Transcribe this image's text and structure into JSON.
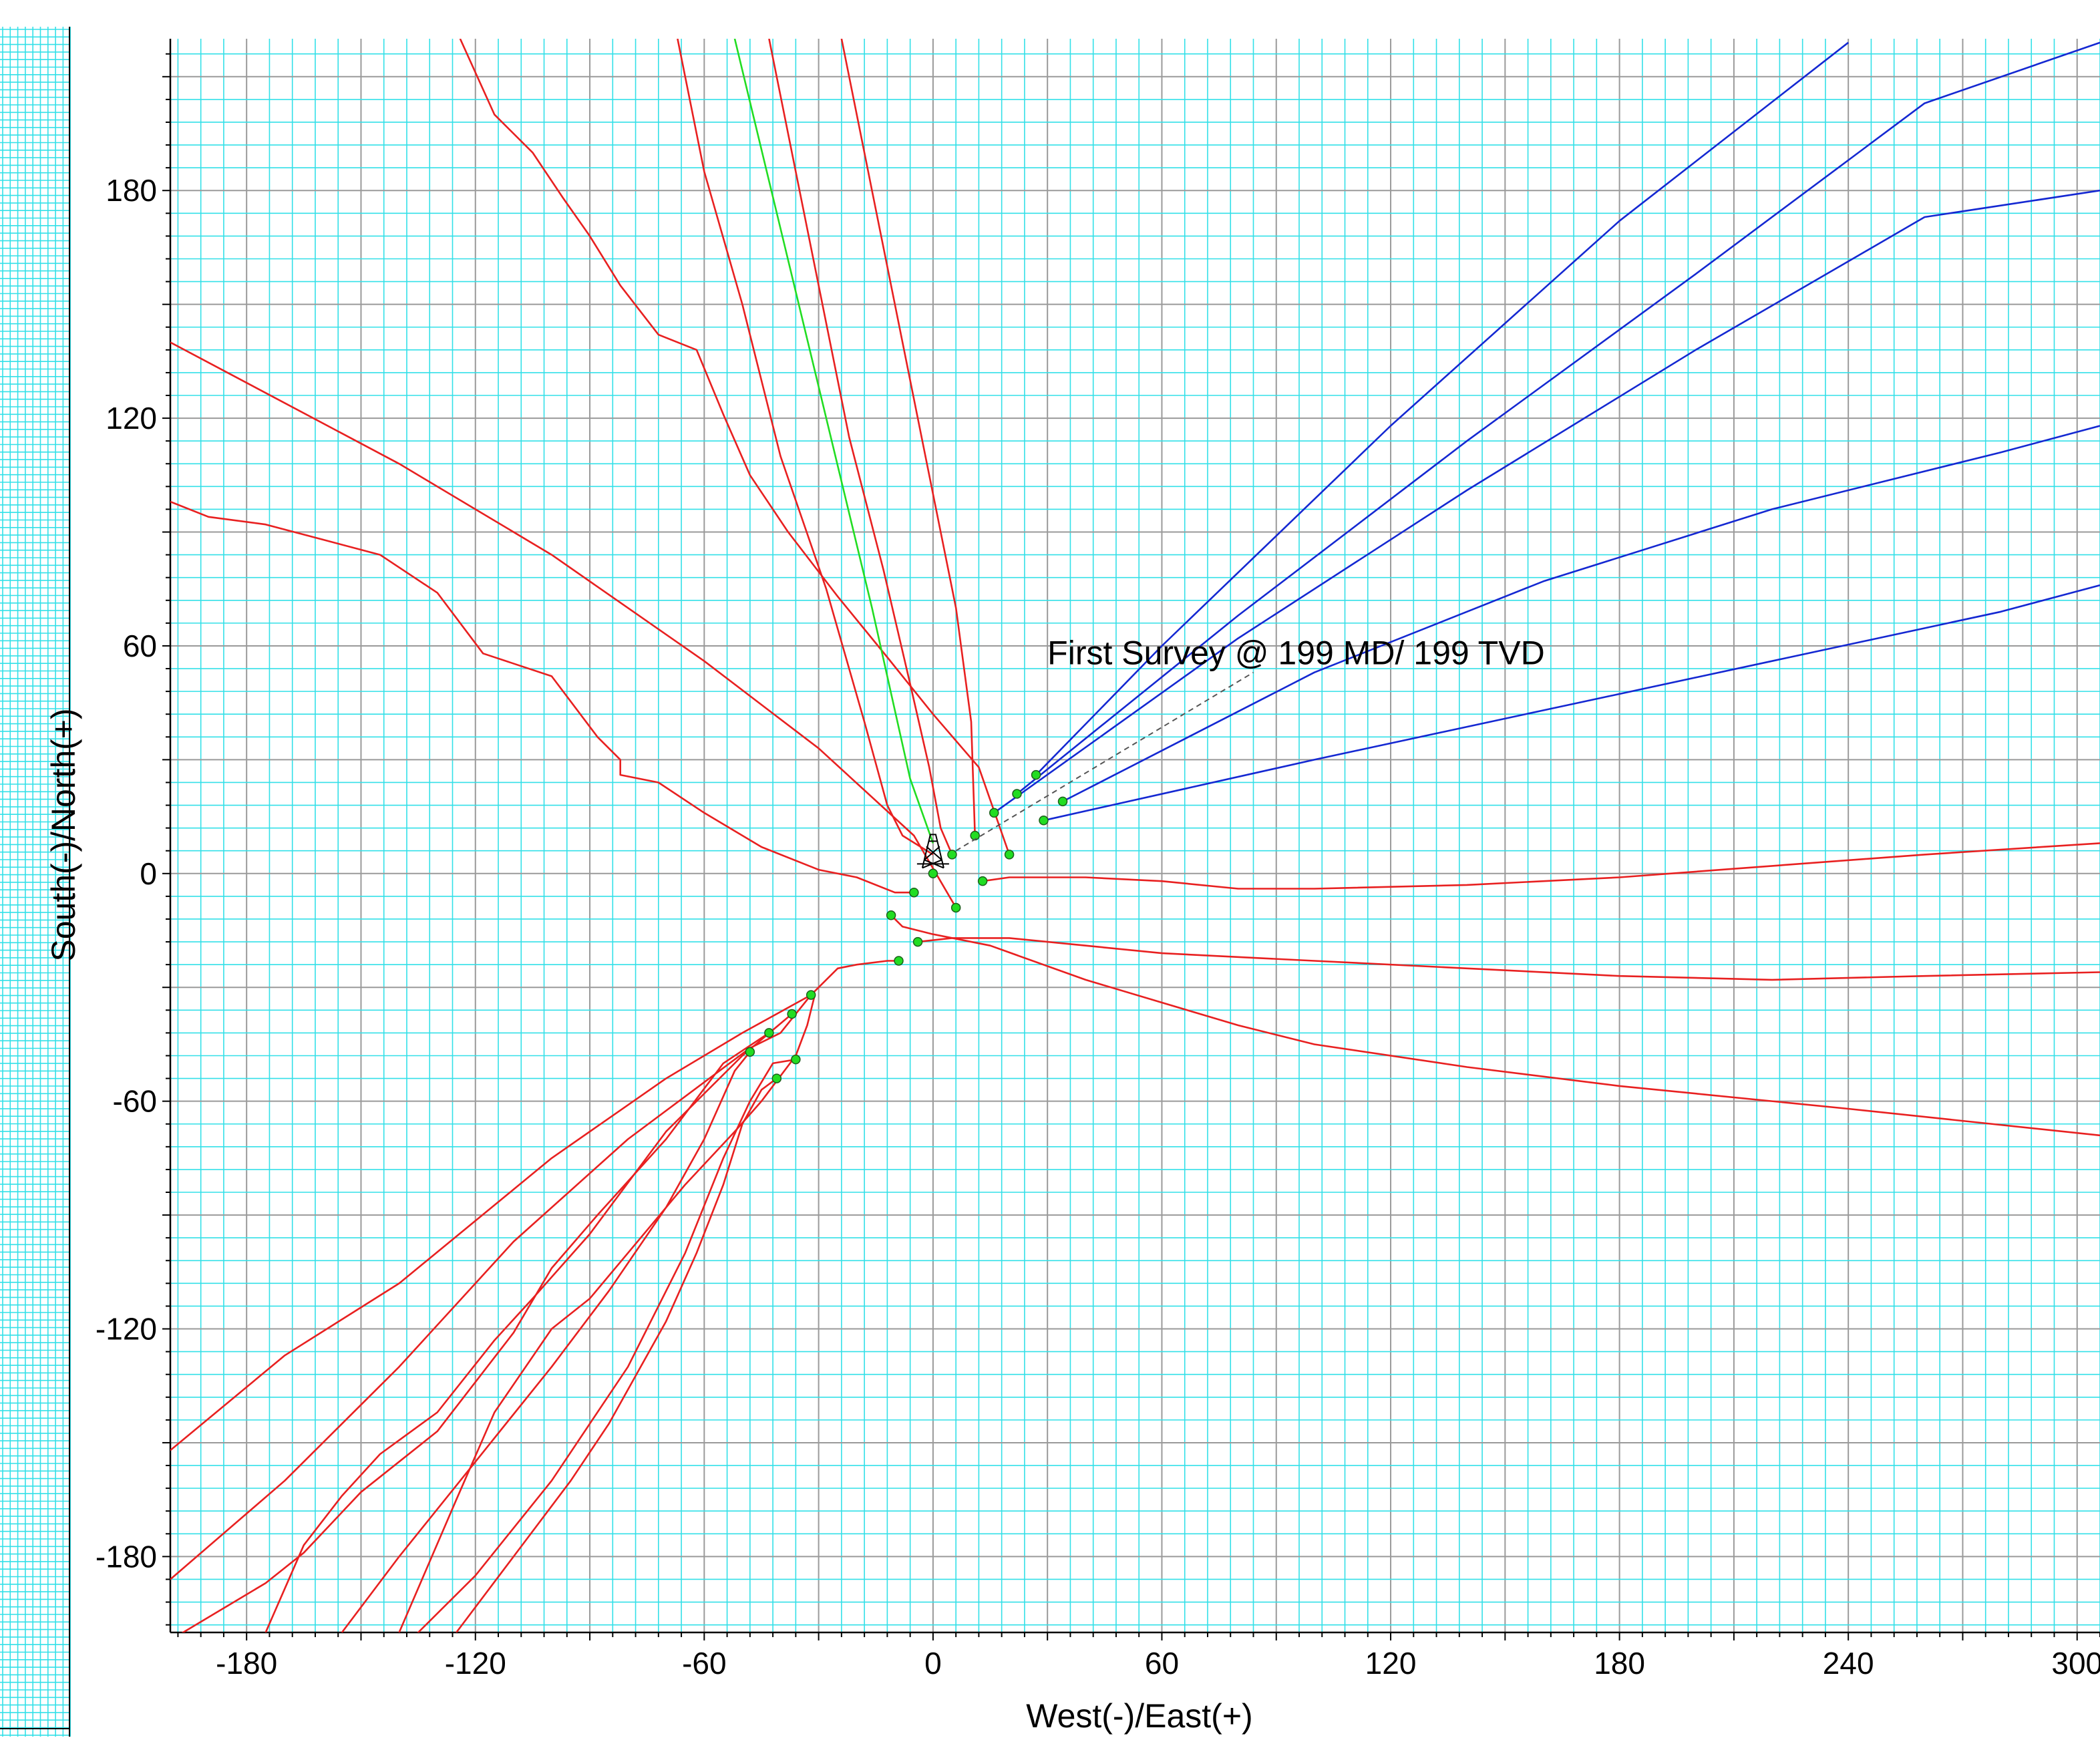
{
  "chart_data": {
    "type": "line",
    "title": "",
    "xlabel": "West(-)/East(+)",
    "ylabel": "South(-)/North(+)",
    "xlim": [
      -200,
      306
    ],
    "ylim": [
      -200,
      220
    ],
    "xticks": [
      {
        "value": -180,
        "label": "-180"
      },
      {
        "value": -120,
        "label": "-120"
      },
      {
        "value": -60,
        "label": "-60"
      },
      {
        "value": 0,
        "label": "0"
      },
      {
        "value": 60,
        "label": "60"
      },
      {
        "value": 120,
        "label": "120"
      },
      {
        "value": 180,
        "label": "180"
      },
      {
        "value": 240,
        "label": "240"
      },
      {
        "value": 300,
        "label": "300"
      }
    ],
    "yticks": [
      {
        "value": 180,
        "label": "180"
      },
      {
        "value": 120,
        "label": "120"
      },
      {
        "value": 60,
        "label": "60"
      },
      {
        "value": 0,
        "label": "0"
      },
      {
        "value": -60,
        "label": "-60"
      },
      {
        "value": -120,
        "label": "-120"
      },
      {
        "value": -180,
        "label": "-180"
      }
    ],
    "grid": {
      "minor_step": 6,
      "major_step": 30,
      "minor_color": "#33e0e8",
      "major_color": "#9a9a9a",
      "background": "#ffffff"
    },
    "annotation": {
      "text": "First Survey @ 199 MD/ 199 TVD",
      "x": 30,
      "y": 58,
      "leader_from": [
        6,
        6
      ],
      "leader_to": [
        84,
        53
      ]
    },
    "colors": {
      "red": "#e82020",
      "blue": "#1428d2",
      "green": "#22dd22",
      "marker": "#22dd22",
      "wellhead": "#000000"
    },
    "wellhead": {
      "x": 0,
      "y": 5
    },
    "series": [
      {
        "color": "red",
        "points": [
          [
            -124,
            220
          ],
          [
            -115,
            200
          ],
          [
            -105,
            190
          ],
          [
            -97,
            178
          ],
          [
            -90,
            168
          ],
          [
            -82,
            155
          ],
          [
            -72,
            142
          ],
          [
            -62,
            138
          ],
          [
            -55,
            121
          ],
          [
            -48,
            105
          ],
          [
            -38,
            90
          ],
          [
            -25,
            73
          ],
          [
            -12,
            57
          ],
          [
            0,
            42
          ],
          [
            12,
            28
          ],
          [
            20,
            5
          ]
        ]
      },
      {
        "color": "red",
        "points": [
          [
            -200,
            140
          ],
          [
            -140,
            108
          ],
          [
            -100,
            84
          ],
          [
            -60,
            56
          ],
          [
            -30,
            33
          ],
          [
            -5,
            10
          ],
          [
            6,
            -9
          ]
        ]
      },
      {
        "color": "red",
        "points": [
          [
            -200,
            98
          ],
          [
            -190,
            94
          ],
          [
            -175,
            92
          ],
          [
            -160,
            88
          ],
          [
            -145,
            84
          ],
          [
            -130,
            74
          ],
          [
            -118,
            58
          ],
          [
            -100,
            52
          ],
          [
            -88,
            36
          ],
          [
            -82,
            30
          ],
          [
            -82,
            26
          ],
          [
            -72,
            24
          ],
          [
            -60,
            16
          ],
          [
            -45,
            7
          ],
          [
            -30,
            1
          ],
          [
            -20,
            -1
          ],
          [
            -10,
            -5
          ],
          [
            -5,
            -5
          ]
        ]
      },
      {
        "color": "red",
        "points": [
          [
            -67,
            220
          ],
          [
            -60,
            185
          ],
          [
            -50,
            150
          ],
          [
            -40,
            110
          ],
          [
            -28,
            75
          ],
          [
            -18,
            40
          ],
          [
            -12,
            18
          ],
          [
            -8,
            10
          ],
          [
            0,
            5
          ]
        ]
      },
      {
        "color": "red",
        "points": [
          [
            -43,
            220
          ],
          [
            -37,
            190
          ],
          [
            -30,
            155
          ],
          [
            -22,
            115
          ],
          [
            -13,
            80
          ],
          [
            -6,
            50
          ],
          [
            -1,
            28
          ],
          [
            2,
            12
          ],
          [
            5,
            5
          ]
        ]
      },
      {
        "color": "red",
        "points": [
          [
            -24,
            220
          ],
          [
            -16,
            180
          ],
          [
            -8,
            140
          ],
          [
            0,
            100
          ],
          [
            6,
            70
          ],
          [
            10,
            40
          ],
          [
            11,
            10
          ]
        ]
      },
      {
        "color": "red",
        "points": [
          [
            13,
            -2
          ],
          [
            20,
            -1
          ],
          [
            40,
            -1
          ],
          [
            60,
            -2
          ],
          [
            80,
            -4
          ],
          [
            100,
            -4
          ],
          [
            140,
            -3
          ],
          [
            180,
            -1
          ],
          [
            220,
            2
          ],
          [
            260,
            5
          ],
          [
            306,
            8
          ]
        ]
      },
      {
        "color": "red",
        "points": [
          [
            -4,
            -18
          ],
          [
            5,
            -17
          ],
          [
            20,
            -17
          ],
          [
            40,
            -19
          ],
          [
            60,
            -21
          ],
          [
            100,
            -23
          ],
          [
            140,
            -25
          ],
          [
            180,
            -27
          ],
          [
            220,
            -28
          ],
          [
            260,
            -27
          ],
          [
            306,
            -26
          ]
        ]
      },
      {
        "color": "red",
        "points": [
          [
            -11,
            -11
          ],
          [
            -8,
            -14
          ],
          [
            0,
            -16
          ],
          [
            15,
            -19
          ],
          [
            40,
            -28
          ],
          [
            60,
            -34
          ],
          [
            80,
            -40
          ],
          [
            100,
            -45
          ],
          [
            140,
            -51
          ],
          [
            180,
            -56
          ],
          [
            240,
            -62
          ],
          [
            306,
            -69
          ]
        ]
      },
      {
        "color": "red",
        "points": [
          [
            -9,
            -23
          ],
          [
            -12,
            -23
          ],
          [
            -20,
            -24
          ],
          [
            -25,
            -25
          ],
          [
            -32,
            -32
          ],
          [
            -50,
            -42
          ],
          [
            -70,
            -54
          ],
          [
            -100,
            -75
          ],
          [
            -140,
            -108
          ],
          [
            -170,
            -127
          ],
          [
            -200,
            -152
          ]
        ]
      },
      {
        "color": "red",
        "points": [
          [
            -32,
            -32
          ],
          [
            -40,
            -42
          ],
          [
            -48,
            -46
          ],
          [
            -80,
            -70
          ],
          [
            -110,
            -97
          ],
          [
            -140,
            -130
          ],
          [
            -170,
            -160
          ],
          [
            -200,
            -186
          ]
        ]
      },
      {
        "color": "red",
        "points": [
          [
            -43,
            -42
          ],
          [
            -55,
            -50
          ],
          [
            -70,
            -70
          ],
          [
            -88,
            -90
          ],
          [
            -100,
            -104
          ],
          [
            -110,
            -121
          ],
          [
            -130,
            -147
          ],
          [
            -150,
            -163
          ],
          [
            -165,
            -179
          ],
          [
            -175,
            -187
          ],
          [
            -185,
            -193
          ],
          [
            -200,
            -202
          ]
        ]
      },
      {
        "color": "red",
        "points": [
          [
            -37,
            -37
          ],
          [
            -50,
            -48
          ],
          [
            -70,
            -68
          ],
          [
            -90,
            -95
          ],
          [
            -105,
            -112
          ],
          [
            -115,
            -123
          ],
          [
            -130,
            -142
          ],
          [
            -145,
            -153
          ],
          [
            -155,
            -164
          ],
          [
            -165,
            -177
          ],
          [
            -175,
            -200
          ]
        ]
      },
      {
        "color": "red",
        "points": [
          [
            -48,
            -47
          ],
          [
            -52,
            -52
          ],
          [
            -60,
            -70
          ],
          [
            -70,
            -88
          ],
          [
            -85,
            -110
          ],
          [
            -100,
            -130
          ],
          [
            -120,
            -155
          ],
          [
            -140,
            -180
          ],
          [
            -155,
            -200
          ]
        ]
      },
      {
        "color": "red",
        "points": [
          [
            -36,
            -49
          ],
          [
            -42,
            -50
          ],
          [
            -48,
            -60
          ],
          [
            -55,
            -75
          ],
          [
            -65,
            -100
          ],
          [
            -80,
            -130
          ],
          [
            -100,
            -160
          ],
          [
            -120,
            -185
          ],
          [
            -140,
            -205
          ]
        ]
      },
      {
        "color": "red",
        "points": [
          [
            -41,
            -54
          ],
          [
            -45,
            -57
          ],
          [
            -50,
            -66
          ],
          [
            -55,
            -82
          ],
          [
            -62,
            -100
          ],
          [
            -70,
            -118
          ],
          [
            -85,
            -145
          ],
          [
            -95,
            -160
          ],
          [
            -110,
            -180
          ],
          [
            -125,
            -200
          ]
        ]
      },
      {
        "color": "red",
        "points": [
          [
            -31,
            -32
          ],
          [
            -33,
            -40
          ],
          [
            -36,
            -48
          ],
          [
            -45,
            -60
          ],
          [
            -52,
            -68
          ],
          [
            -65,
            -82
          ],
          [
            -80,
            -100
          ],
          [
            -90,
            -112
          ],
          [
            -100,
            -120
          ],
          [
            -115,
            -142
          ],
          [
            -125,
            -165
          ],
          [
            -140,
            -200
          ]
        ]
      },
      {
        "color": "green",
        "points": [
          [
            -52,
            220
          ],
          [
            -40,
            170
          ],
          [
            -28,
            120
          ],
          [
            -16,
            70
          ],
          [
            -6,
            25
          ],
          [
            0,
            8
          ]
        ]
      },
      {
        "color": "blue",
        "points": [
          [
            27,
            26
          ],
          [
            60,
            60
          ],
          [
            120,
            118
          ],
          [
            180,
            172
          ],
          [
            240,
            219
          ]
        ]
      },
      {
        "color": "blue",
        "points": [
          [
            22,
            21
          ],
          [
            80,
            68
          ],
          [
            140,
            114
          ],
          [
            200,
            158
          ],
          [
            260,
            203
          ],
          [
            306,
            219
          ]
        ]
      },
      {
        "color": "blue",
        "points": [
          [
            16,
            16
          ],
          [
            80,
            62
          ],
          [
            140,
            101
          ],
          [
            200,
            138
          ],
          [
            260,
            173
          ],
          [
            306,
            180
          ]
        ]
      },
      {
        "color": "blue",
        "points": [
          [
            34,
            19
          ],
          [
            100,
            53
          ],
          [
            160,
            77
          ],
          [
            220,
            96
          ],
          [
            280,
            111
          ],
          [
            306,
            118
          ]
        ]
      },
      {
        "color": "blue",
        "points": [
          [
            29,
            14
          ],
          [
            100,
            30
          ],
          [
            160,
            43
          ],
          [
            220,
            56
          ],
          [
            280,
            69
          ],
          [
            306,
            76
          ]
        ]
      }
    ],
    "markers": [
      {
        "x": 0,
        "y": 0
      },
      {
        "x": 5,
        "y": 5
      },
      {
        "x": 11,
        "y": 10
      },
      {
        "x": 16,
        "y": 16
      },
      {
        "x": 22,
        "y": 21
      },
      {
        "x": 27,
        "y": 26
      },
      {
        "x": 34,
        "y": 19
      },
      {
        "x": 29,
        "y": 14
      },
      {
        "x": 20,
        "y": 5
      },
      {
        "x": 13,
        "y": -2
      },
      {
        "x": -5,
        "y": -5
      },
      {
        "x": 6,
        "y": -9
      },
      {
        "x": -11,
        "y": -11
      },
      {
        "x": -4,
        "y": -18
      },
      {
        "x": -9,
        "y": -23
      },
      {
        "x": -32,
        "y": -32
      },
      {
        "x": -37,
        "y": -37
      },
      {
        "x": -43,
        "y": -42
      },
      {
        "x": -48,
        "y": -47
      },
      {
        "x": -36,
        "y": -49
      },
      {
        "x": -41,
        "y": -54
      }
    ]
  },
  "left_panel": {
    "grid_color": "#33e0e8"
  }
}
